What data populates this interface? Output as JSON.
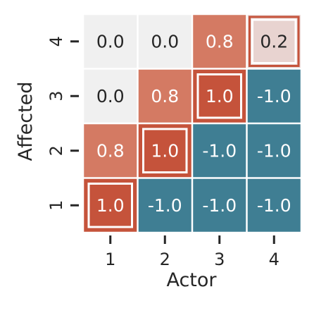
{
  "chart_data": {
    "type": "heatmap",
    "xlabel": "Actor",
    "ylabel": "Affected",
    "x_categories": [
      "1",
      "2",
      "3",
      "4"
    ],
    "y_categories": [
      "4",
      "3",
      "2",
      "1"
    ],
    "values": [
      [
        0.0,
        0.0,
        0.8,
        0.2
      ],
      [
        0.0,
        0.8,
        1.0,
        -1.0
      ],
      [
        0.8,
        1.0,
        -1.0,
        -1.0
      ],
      [
        1.0,
        -1.0,
        -1.0,
        -1.0
      ]
    ],
    "labels": [
      [
        "0.0",
        "0.0",
        "0.8",
        "0.2"
      ],
      [
        "0.0",
        "0.8",
        "1.0",
        "-1.0"
      ],
      [
        "0.8",
        "1.0",
        "-1.0",
        "-1.0"
      ],
      [
        "1.0",
        "-1.0",
        "-1.0",
        "-1.0"
      ]
    ],
    "highlighted_cells": [
      [
        0,
        3
      ],
      [
        1,
        2
      ],
      [
        2,
        1
      ],
      [
        3,
        0
      ]
    ],
    "colors": {
      "zero": "#f0f0f0",
      "low_positive": "#e8d3d0",
      "positive": "#d47a63",
      "strong_positive": "#c5533b",
      "negative": "#3f7e93",
      "highlight_outline": "#c5533b",
      "dark_text": "#262626",
      "light_text": "#ffffff"
    }
  }
}
